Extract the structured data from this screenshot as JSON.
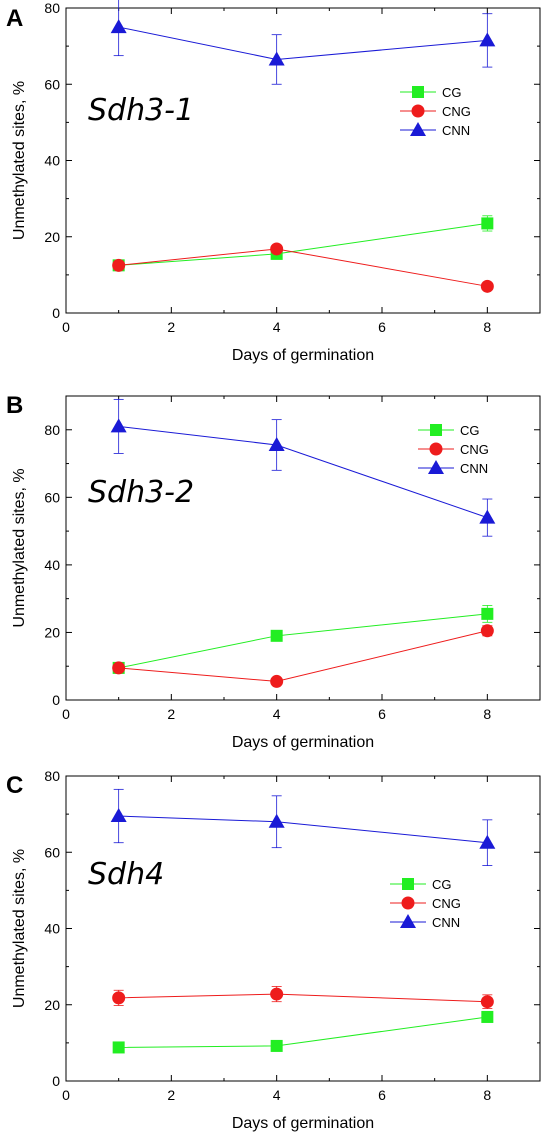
{
  "chart_data": [
    {
      "type": "line",
      "panel_label": "A",
      "annotation": "Sdh3-1",
      "xlabel": "Days of germination",
      "ylabel": "Unmethylated sites, %",
      "xlim": [
        0,
        9
      ],
      "ylim": [
        0,
        80
      ],
      "xticks": [
        "0",
        "2",
        "4",
        "6",
        "8"
      ],
      "yticks": [
        "0",
        "20",
        "40",
        "60",
        "80"
      ],
      "x": [
        1,
        4,
        8
      ],
      "legend_placement": "upper-right-inner",
      "grid": false,
      "series": [
        {
          "name": "CG",
          "color": "#22ee22",
          "marker": "square",
          "values": [
            12.5,
            15.5,
            23.5
          ],
          "errors": [
            0.8,
            0.8,
            2
          ]
        },
        {
          "name": "CNG",
          "color": "#ee1c1c",
          "marker": "circle",
          "values": [
            12.5,
            16.8,
            7
          ],
          "errors": [
            0.8,
            0.8,
            0.6
          ]
        },
        {
          "name": "CNN",
          "color": "#1a1ad6",
          "marker": "triangle",
          "values": [
            75,
            66.5,
            71.5
          ],
          "errors": [
            7.5,
            6.5,
            7
          ]
        }
      ]
    },
    {
      "type": "line",
      "panel_label": "B",
      "annotation": "Sdh3-2",
      "xlabel": "Days of germination",
      "ylabel": "Unmethylated sites, %",
      "xlim": [
        0,
        9
      ],
      "ylim": [
        0,
        90
      ],
      "xticks": [
        "0",
        "2",
        "4",
        "6",
        "8"
      ],
      "yticks": [
        "0",
        "20",
        "40",
        "60",
        "80"
      ],
      "x": [
        1,
        4,
        8
      ],
      "legend_placement": "upper-right-inner",
      "grid": false,
      "series": [
        {
          "name": "CG",
          "color": "#22ee22",
          "marker": "square",
          "values": [
            9.5,
            19,
            25.5
          ],
          "errors": [
            0.8,
            1,
            2.5
          ]
        },
        {
          "name": "CNG",
          "color": "#ee1c1c",
          "marker": "circle",
          "values": [
            9.5,
            5.5,
            20.5
          ],
          "errors": [
            0.8,
            0.5,
            1.5
          ]
        },
        {
          "name": "CNN",
          "color": "#1a1ad6",
          "marker": "triangle",
          "values": [
            81,
            75.5,
            54
          ],
          "errors": [
            8,
            7.5,
            5.5
          ]
        }
      ]
    },
    {
      "type": "line",
      "panel_label": "C",
      "annotation": "Sdh4",
      "xlabel": "Days of germination",
      "ylabel": "Unmethylated sites, %",
      "xlim": [
        0,
        9
      ],
      "ylim": [
        0,
        80
      ],
      "xticks": [
        "0",
        "2",
        "4",
        "6",
        "8"
      ],
      "yticks": [
        "0",
        "20",
        "40",
        "60",
        "80"
      ],
      "x": [
        1,
        4,
        8
      ],
      "legend_placement": "right-inner",
      "grid": false,
      "series": [
        {
          "name": "CG",
          "color": "#22ee22",
          "marker": "square",
          "values": [
            8.8,
            9.2,
            16.8
          ],
          "errors": [
            0.5,
            0.5,
            0.8
          ]
        },
        {
          "name": "CNG",
          "color": "#ee1c1c",
          "marker": "circle",
          "values": [
            21.8,
            22.8,
            20.8
          ],
          "errors": [
            2,
            2,
            1.8
          ]
        },
        {
          "name": "CNN",
          "color": "#1a1ad6",
          "marker": "triangle",
          "values": [
            69.5,
            68,
            62.5
          ],
          "errors": [
            7,
            6.8,
            6
          ]
        }
      ]
    }
  ]
}
